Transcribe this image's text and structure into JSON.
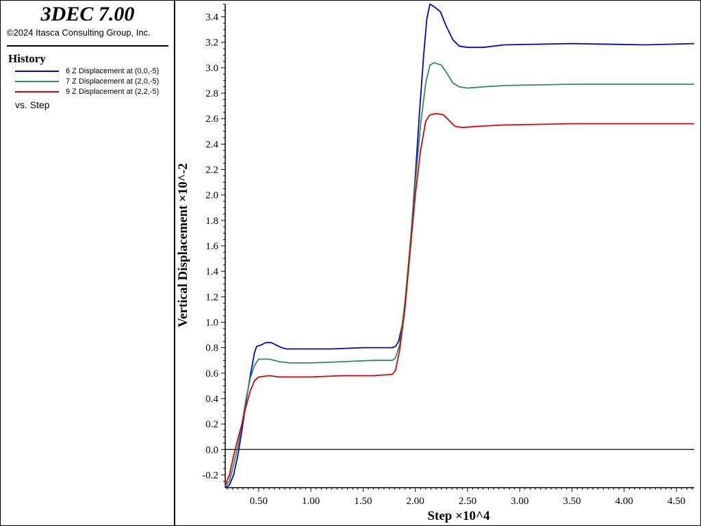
{
  "app": {
    "title": "3DEC 7.00",
    "copyright": "©2024 Itasca Consulting Group, Inc."
  },
  "legend": {
    "heading": "History",
    "vs_label": "vs. Step"
  },
  "chart_data": {
    "type": "line",
    "xlabel": "Step ×10^4",
    "ylabel": "Vertical Displacement ×10^-2",
    "xlim": [
      0.18,
      4.67
    ],
    "ylim": [
      -0.3,
      3.5
    ],
    "x_ticks": [
      "0.50",
      "1.00",
      "1.50",
      "2.00",
      "2.50",
      "3.00",
      "3.50",
      "4.00",
      "4.50"
    ],
    "y_ticks": [
      "-0.2",
      "0.0",
      "0.2",
      "0.4",
      "0.6",
      "0.8",
      "1.0",
      "1.2",
      "1.4",
      "1.6",
      "1.8",
      "2.0",
      "2.2",
      "2.4",
      "2.6",
      "2.8",
      "3.0",
      "3.2",
      "3.4"
    ],
    "zero_line": true,
    "grid": false,
    "series": [
      {
        "name": "6 Z Displacement at (0,0,-5)",
        "color": "#0000dd",
        "points": [
          [
            0.18,
            -0.3
          ],
          [
            0.22,
            -0.28
          ],
          [
            0.26,
            -0.2
          ],
          [
            0.3,
            -0.05
          ],
          [
            0.34,
            0.15
          ],
          [
            0.38,
            0.38
          ],
          [
            0.42,
            0.58
          ],
          [
            0.46,
            0.76
          ],
          [
            0.48,
            0.81
          ],
          [
            0.52,
            0.82
          ],
          [
            0.57,
            0.84
          ],
          [
            0.62,
            0.84
          ],
          [
            0.67,
            0.82
          ],
          [
            0.72,
            0.8
          ],
          [
            0.77,
            0.79
          ],
          [
            0.9,
            0.79
          ],
          [
            1.2,
            0.79
          ],
          [
            1.5,
            0.8
          ],
          [
            1.78,
            0.8
          ],
          [
            1.81,
            0.81
          ],
          [
            1.84,
            0.85
          ],
          [
            1.88,
            1.0
          ],
          [
            1.92,
            1.3
          ],
          [
            1.96,
            1.7
          ],
          [
            2.0,
            2.15
          ],
          [
            2.04,
            2.65
          ],
          [
            2.08,
            3.1
          ],
          [
            2.11,
            3.38
          ],
          [
            2.14,
            3.5
          ],
          [
            2.18,
            3.48
          ],
          [
            2.24,
            3.44
          ],
          [
            2.3,
            3.32
          ],
          [
            2.36,
            3.22
          ],
          [
            2.42,
            3.17
          ],
          [
            2.5,
            3.16
          ],
          [
            2.65,
            3.16
          ],
          [
            2.85,
            3.18
          ],
          [
            3.5,
            3.19
          ],
          [
            4.2,
            3.18
          ],
          [
            4.67,
            3.19
          ]
        ]
      },
      {
        "name": "7 Z Displacement at (2,0,-5)",
        "color": "#2e8b57",
        "points": [
          [
            0.18,
            -0.29
          ],
          [
            0.22,
            -0.25
          ],
          [
            0.26,
            -0.12
          ],
          [
            0.3,
            0.02
          ],
          [
            0.34,
            0.2
          ],
          [
            0.38,
            0.4
          ],
          [
            0.42,
            0.56
          ],
          [
            0.46,
            0.66
          ],
          [
            0.5,
            0.71
          ],
          [
            0.6,
            0.71
          ],
          [
            0.7,
            0.69
          ],
          [
            0.8,
            0.68
          ],
          [
            1.0,
            0.68
          ],
          [
            1.3,
            0.69
          ],
          [
            1.6,
            0.7
          ],
          [
            1.78,
            0.7
          ],
          [
            1.81,
            0.72
          ],
          [
            1.85,
            0.82
          ],
          [
            1.9,
            1.15
          ],
          [
            1.95,
            1.6
          ],
          [
            2.0,
            2.1
          ],
          [
            2.05,
            2.55
          ],
          [
            2.1,
            2.88
          ],
          [
            2.14,
            3.02
          ],
          [
            2.18,
            3.04
          ],
          [
            2.25,
            3.02
          ],
          [
            2.3,
            2.96
          ],
          [
            2.36,
            2.88
          ],
          [
            2.42,
            2.85
          ],
          [
            2.5,
            2.84
          ],
          [
            2.65,
            2.85
          ],
          [
            2.85,
            2.86
          ],
          [
            3.5,
            2.87
          ],
          [
            4.2,
            2.87
          ],
          [
            4.67,
            2.87
          ]
        ]
      },
      {
        "name": "9 Z Displacement at (2,2,-5)",
        "color": "#dd0000",
        "points": [
          [
            0.18,
            -0.28
          ],
          [
            0.22,
            -0.2
          ],
          [
            0.26,
            -0.05
          ],
          [
            0.3,
            0.08
          ],
          [
            0.34,
            0.2
          ],
          [
            0.38,
            0.34
          ],
          [
            0.42,
            0.46
          ],
          [
            0.46,
            0.54
          ],
          [
            0.5,
            0.57
          ],
          [
            0.6,
            0.58
          ],
          [
            0.7,
            0.57
          ],
          [
            0.8,
            0.57
          ],
          [
            1.0,
            0.57
          ],
          [
            1.3,
            0.58
          ],
          [
            1.6,
            0.58
          ],
          [
            1.78,
            0.59
          ],
          [
            1.81,
            0.62
          ],
          [
            1.85,
            0.78
          ],
          [
            1.9,
            1.1
          ],
          [
            1.95,
            1.55
          ],
          [
            2.0,
            2.0
          ],
          [
            2.05,
            2.35
          ],
          [
            2.1,
            2.58
          ],
          [
            2.14,
            2.63
          ],
          [
            2.2,
            2.64
          ],
          [
            2.27,
            2.63
          ],
          [
            2.33,
            2.58
          ],
          [
            2.38,
            2.54
          ],
          [
            2.45,
            2.53
          ],
          [
            2.6,
            2.54
          ],
          [
            2.85,
            2.55
          ],
          [
            3.5,
            2.56
          ],
          [
            4.2,
            2.56
          ],
          [
            4.67,
            2.56
          ]
        ]
      }
    ]
  }
}
